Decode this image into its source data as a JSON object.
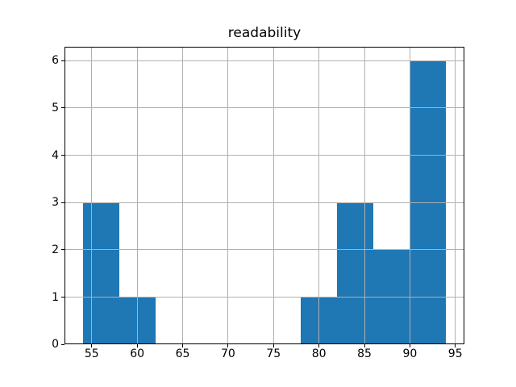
{
  "figure": {
    "background": "#ffffff"
  },
  "chart_data": {
    "type": "histogram",
    "title": "readability",
    "xlabel": "",
    "ylabel": "",
    "bin_edges": [
      54,
      58,
      62,
      66,
      70,
      74,
      78,
      82,
      86,
      90,
      94
    ],
    "counts": [
      3,
      1,
      0,
      0,
      0,
      0,
      1,
      3,
      2,
      6
    ],
    "xlim": [
      52,
      96
    ],
    "ylim": [
      0,
      6.3
    ],
    "xticks": [
      55,
      60,
      65,
      70,
      75,
      80,
      85,
      90,
      95
    ],
    "yticks": [
      0,
      1,
      2,
      3,
      4,
      5,
      6
    ],
    "grid": true,
    "grid_above_bars": true,
    "legend": false,
    "colors": {
      "bar": "#1f77b4",
      "grid": "#b0b0b0",
      "spine": "#000000",
      "text": "#000000",
      "background": "#ffffff"
    }
  }
}
